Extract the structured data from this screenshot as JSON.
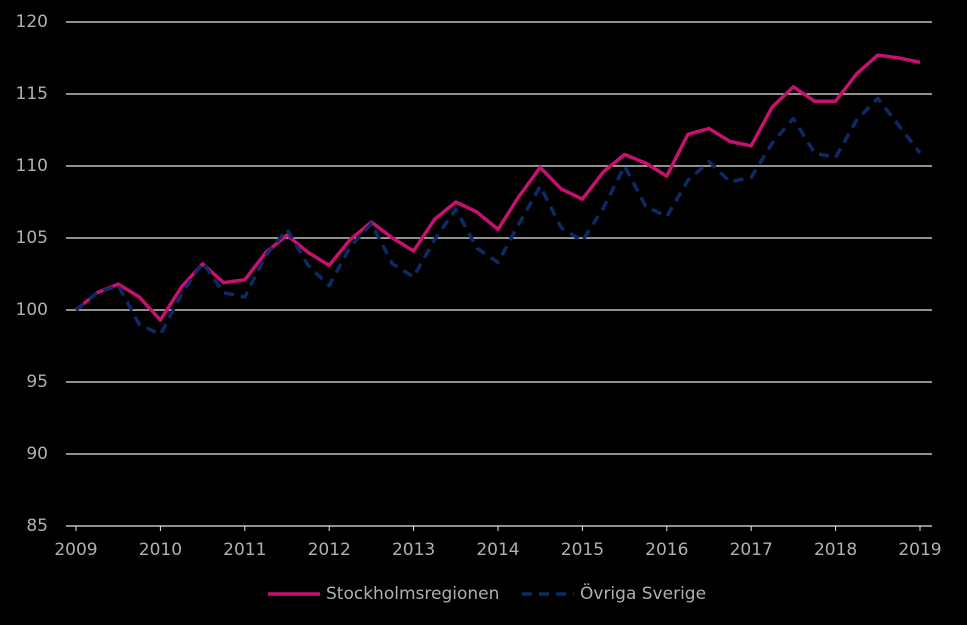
{
  "chart_data": {
    "type": "line",
    "x": [
      2009,
      2009.25,
      2009.5,
      2009.75,
      2010,
      2010.25,
      2010.5,
      2010.75,
      2011,
      2011.25,
      2011.5,
      2011.75,
      2012,
      2012.25,
      2012.5,
      2012.75,
      2013,
      2013.25,
      2013.5,
      2013.75,
      2014,
      2014.25,
      2014.5,
      2014.75,
      2015,
      2015.25,
      2015.5,
      2015.75,
      2016,
      2016.25,
      2016.5,
      2016.75,
      2017,
      2017.25,
      2017.5,
      2017.75,
      2018,
      2018.25,
      2018.5,
      2018.75,
      2019
    ],
    "series": [
      {
        "name": "Stockholmsregionen",
        "color": "#c8106e",
        "dash": false,
        "values": [
          100,
          101.2,
          101.8,
          100.9,
          99.3,
          101.6,
          103.2,
          101.9,
          102.1,
          104.0,
          105.2,
          104.0,
          103.1,
          104.9,
          106.1,
          105.0,
          104.1,
          106.3,
          107.5,
          106.8,
          105.6,
          107.9,
          109.9,
          108.4,
          107.7,
          109.6,
          110.8,
          110.2,
          109.3,
          112.2,
          112.6,
          111.7,
          111.4,
          114.1,
          115.5,
          114.5,
          114.5,
          116.4,
          117.7,
          117.5,
          117.2
        ]
      },
      {
        "name": "Övriga Sverige",
        "color": "#0d2a66",
        "dash": true,
        "values": [
          100,
          101.2,
          101.7,
          99.0,
          98.3,
          101.1,
          103.3,
          101.2,
          100.9,
          103.8,
          105.6,
          103.1,
          101.7,
          104.4,
          106.0,
          103.2,
          102.3,
          104.9,
          107.0,
          104.3,
          103.3,
          106.0,
          108.6,
          105.7,
          104.8,
          107.1,
          110.0,
          107.2,
          106.5,
          109.0,
          110.3,
          108.9,
          109.2,
          111.6,
          113.3,
          110.9,
          110.6,
          113.2,
          114.7,
          112.8,
          110.9
        ]
      }
    ],
    "xlim": [
      2009,
      2019
    ],
    "xticks": [
      2009,
      2010,
      2011,
      2012,
      2013,
      2014,
      2015,
      2016,
      2017,
      2018,
      2019
    ],
    "ylim": [
      85,
      120
    ],
    "yticks": [
      85,
      90,
      95,
      100,
      105,
      110,
      115,
      120
    ],
    "grid": true
  }
}
